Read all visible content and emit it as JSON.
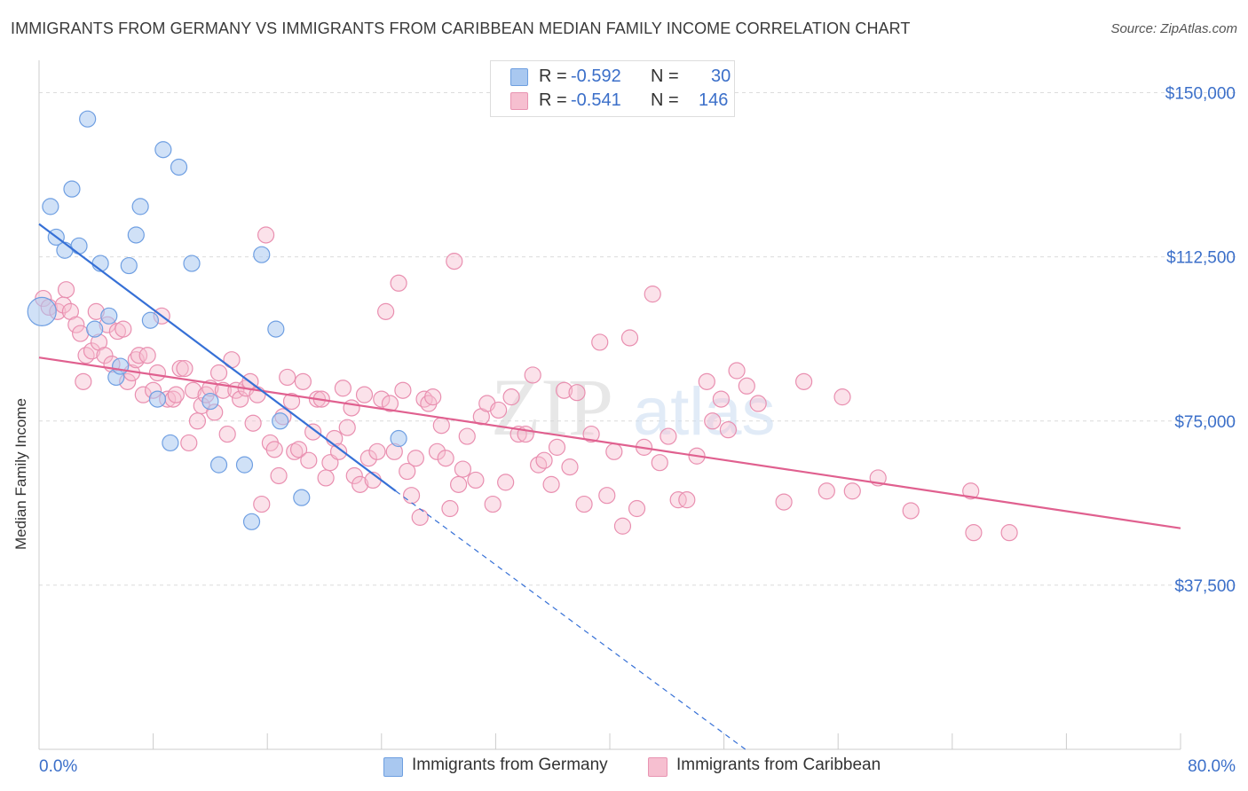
{
  "title": "IMMIGRANTS FROM GERMANY VS IMMIGRANTS FROM CARIBBEAN MEDIAN FAMILY INCOME CORRELATION CHART",
  "source": "Source: ZipAtlas.com",
  "watermark": {
    "zip": "ZIP",
    "atlas": "atlas"
  },
  "legend": {
    "rows": [
      {
        "r_label": "R =",
        "r_value": "-0.592",
        "n_label": "N =",
        "n_value": "30",
        "color": "#a9c8f0",
        "stroke": "#6e9fe0"
      },
      {
        "r_label": "R =",
        "r_value": "-0.541",
        "n_label": "N =",
        "n_value": "146",
        "color": "#f6bfd0",
        "stroke": "#e894b2"
      }
    ]
  },
  "colors": {
    "blue_fill": "#a9c8f0",
    "blue_stroke": "#6f9fe2",
    "blue_line": "#3670d6",
    "pink_fill": "#f6bfd0",
    "pink_stroke": "#e98fb0",
    "pink_line": "#e0608f",
    "grid": "#dcdcdc",
    "tick_text": "#3b6fc9",
    "axis": "#cccccc"
  },
  "chart_data": {
    "type": "scatter",
    "title": "IMMIGRANTS FROM GERMANY VS IMMIGRANTS FROM CARIBBEAN MEDIAN FAMILY INCOME CORRELATION CHART",
    "xlabel": "",
    "ylabel": "Median Family Income",
    "xlim": [
      0,
      80
    ],
    "ylim": [
      0,
      157000
    ],
    "x_ticks": [
      0,
      80
    ],
    "x_tick_labels": [
      "0.0%",
      "80.0%"
    ],
    "y_ticks": [
      37500,
      75000,
      112500,
      150000
    ],
    "y_tick_labels": [
      "$37,500",
      "$75,000",
      "$112,500",
      "$150,000"
    ],
    "grid": "horizontal dashed",
    "legend_position": "top-center",
    "series": [
      {
        "name": "Immigrants from Germany",
        "color": "#a9c8f0",
        "points": [
          [
            0.2,
            100000
          ],
          [
            0.8,
            124000
          ],
          [
            1.2,
            117000
          ],
          [
            1.8,
            114000
          ],
          [
            2.3,
            128000
          ],
          [
            2.8,
            115000
          ],
          [
            3.4,
            144000
          ],
          [
            3.9,
            96000
          ],
          [
            4.3,
            111000
          ],
          [
            4.9,
            99000
          ],
          [
            5.4,
            85000
          ],
          [
            5.7,
            87500
          ],
          [
            6.3,
            110500
          ],
          [
            6.8,
            117500
          ],
          [
            7.1,
            124000
          ],
          [
            7.8,
            98000
          ],
          [
            8.3,
            80000
          ],
          [
            8.7,
            137000
          ],
          [
            9.2,
            70000
          ],
          [
            9.8,
            133000
          ],
          [
            10.7,
            111000
          ],
          [
            12.0,
            79500
          ],
          [
            12.6,
            65000
          ],
          [
            14.4,
            65000
          ],
          [
            14.9,
            52000
          ],
          [
            15.6,
            113000
          ],
          [
            16.6,
            96000
          ],
          [
            16.9,
            75000
          ],
          [
            18.4,
            57500
          ],
          [
            25.2,
            71000
          ]
        ],
        "trend": {
          "x0": 0,
          "y0": 120000,
          "x1": 25,
          "y1": 59000,
          "dashed_to": {
            "x": 49.5,
            "y": 0
          }
        }
      },
      {
        "name": "Immigrants from Caribbean",
        "color": "#f6bfd0",
        "points": [
          [
            0.3,
            103000
          ],
          [
            0.7,
            101000
          ],
          [
            1.3,
            100000
          ],
          [
            1.7,
            101500
          ],
          [
            1.9,
            105000
          ],
          [
            2.2,
            100000
          ],
          [
            2.6,
            97000
          ],
          [
            2.9,
            95000
          ],
          [
            3.1,
            84000
          ],
          [
            3.3,
            90000
          ],
          [
            3.7,
            91000
          ],
          [
            4.0,
            100000
          ],
          [
            4.2,
            93000
          ],
          [
            4.6,
            90000
          ],
          [
            4.8,
            97000
          ],
          [
            5.1,
            88000
          ],
          [
            5.5,
            95500
          ],
          [
            5.9,
            96000
          ],
          [
            6.2,
            84000
          ],
          [
            6.5,
            86000
          ],
          [
            6.8,
            89000
          ],
          [
            7.0,
            90000
          ],
          [
            7.3,
            81000
          ],
          [
            7.6,
            90000
          ],
          [
            8.0,
            82000
          ],
          [
            8.3,
            86000
          ],
          [
            8.6,
            99000
          ],
          [
            9.0,
            80000
          ],
          [
            9.4,
            80000
          ],
          [
            9.6,
            81000
          ],
          [
            9.9,
            87000
          ],
          [
            10.2,
            87000
          ],
          [
            10.5,
            70000
          ],
          [
            10.8,
            82000
          ],
          [
            11.1,
            75000
          ],
          [
            11.4,
            78500
          ],
          [
            11.7,
            81000
          ],
          [
            12.0,
            82500
          ],
          [
            12.3,
            77000
          ],
          [
            12.6,
            86000
          ],
          [
            12.9,
            82000
          ],
          [
            13.2,
            72000
          ],
          [
            13.5,
            89000
          ],
          [
            13.8,
            82000
          ],
          [
            14.1,
            80000
          ],
          [
            14.5,
            82500
          ],
          [
            14.8,
            84000
          ],
          [
            15.0,
            74500
          ],
          [
            15.3,
            81000
          ],
          [
            15.6,
            56000
          ],
          [
            15.9,
            117500
          ],
          [
            16.2,
            70000
          ],
          [
            16.5,
            68500
          ],
          [
            16.8,
            62500
          ],
          [
            17.1,
            76000
          ],
          [
            17.4,
            85000
          ],
          [
            17.7,
            79500
          ],
          [
            17.9,
            68000
          ],
          [
            18.2,
            68500
          ],
          [
            18.5,
            84000
          ],
          [
            18.9,
            66000
          ],
          [
            19.2,
            72500
          ],
          [
            19.5,
            80000
          ],
          [
            19.8,
            80000
          ],
          [
            20.1,
            62000
          ],
          [
            20.4,
            65500
          ],
          [
            20.7,
            71000
          ],
          [
            21.0,
            68000
          ],
          [
            21.3,
            82500
          ],
          [
            21.6,
            73500
          ],
          [
            21.9,
            78000
          ],
          [
            22.1,
            62500
          ],
          [
            22.5,
            60500
          ],
          [
            22.8,
            81000
          ],
          [
            23.1,
            66500
          ],
          [
            23.4,
            61500
          ],
          [
            23.7,
            68000
          ],
          [
            24.0,
            80000
          ],
          [
            24.3,
            100000
          ],
          [
            24.6,
            79000
          ],
          [
            24.9,
            68000
          ],
          [
            25.2,
            106500
          ],
          [
            25.5,
            82000
          ],
          [
            25.8,
            63500
          ],
          [
            26.1,
            58000
          ],
          [
            26.4,
            66500
          ],
          [
            26.7,
            53000
          ],
          [
            27.0,
            80000
          ],
          [
            27.3,
            79000
          ],
          [
            27.6,
            80500
          ],
          [
            27.9,
            68000
          ],
          [
            28.2,
            74000
          ],
          [
            28.5,
            66500
          ],
          [
            28.8,
            55000
          ],
          [
            29.1,
            111500
          ],
          [
            29.4,
            60500
          ],
          [
            29.7,
            64000
          ],
          [
            30.0,
            71500
          ],
          [
            30.6,
            61500
          ],
          [
            31.0,
            76000
          ],
          [
            31.4,
            79000
          ],
          [
            31.8,
            56000
          ],
          [
            32.2,
            77500
          ],
          [
            32.7,
            61000
          ],
          [
            33.1,
            80500
          ],
          [
            33.6,
            72000
          ],
          [
            34.1,
            72000
          ],
          [
            34.6,
            85500
          ],
          [
            35.0,
            65000
          ],
          [
            35.4,
            66000
          ],
          [
            35.9,
            60500
          ],
          [
            36.3,
            69000
          ],
          [
            36.8,
            82000
          ],
          [
            37.2,
            64500
          ],
          [
            37.7,
            81500
          ],
          [
            38.2,
            56000
          ],
          [
            38.7,
            72000
          ],
          [
            39.3,
            93000
          ],
          [
            39.8,
            58000
          ],
          [
            40.3,
            68000
          ],
          [
            40.9,
            51000
          ],
          [
            41.4,
            94000
          ],
          [
            41.9,
            55000
          ],
          [
            42.4,
            69000
          ],
          [
            43.0,
            104000
          ],
          [
            43.5,
            65500
          ],
          [
            44.1,
            71500
          ],
          [
            44.8,
            57000
          ],
          [
            45.4,
            57000
          ],
          [
            46.1,
            67000
          ],
          [
            46.8,
            84000
          ],
          [
            47.2,
            75000
          ],
          [
            47.8,
            80000
          ],
          [
            48.3,
            73000
          ],
          [
            48.9,
            86500
          ],
          [
            49.6,
            83000
          ],
          [
            50.4,
            79000
          ],
          [
            52.2,
            56500
          ],
          [
            53.6,
            84000
          ],
          [
            55.2,
            59000
          ],
          [
            56.3,
            80500
          ],
          [
            57.0,
            59000
          ],
          [
            58.8,
            62000
          ],
          [
            61.1,
            54500
          ],
          [
            65.3,
            59000
          ],
          [
            65.5,
            49500
          ],
          [
            68.0,
            49500
          ]
        ],
        "trend": {
          "x0": 0,
          "y0": 89500,
          "x1": 80,
          "y1": 50500
        }
      }
    ]
  },
  "bottom_legend": [
    {
      "label": "Immigrants from Germany"
    },
    {
      "label": "Immigrants from Caribbean"
    }
  ]
}
